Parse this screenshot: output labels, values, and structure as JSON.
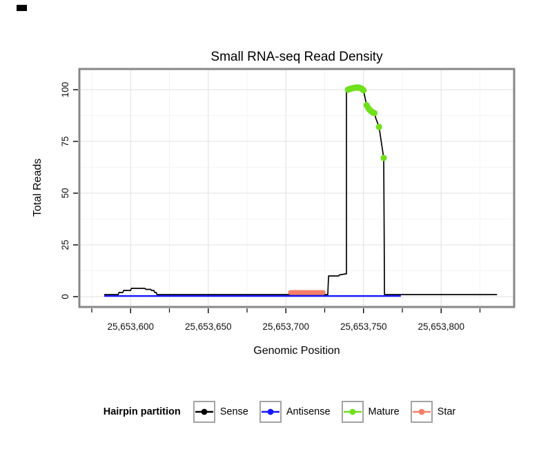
{
  "chart_data": {
    "type": "line",
    "title": "Small RNA-seq Read Density",
    "xlabel": "Genomic Position",
    "ylabel": "Total Reads",
    "legend_title": "Hairpin partition",
    "legend_position": "bottom",
    "grid": true,
    "xlim": [
      25653567,
      25653847
    ],
    "ylim": [
      -5,
      110
    ],
    "xticks": [
      25653600,
      25653650,
      25653700,
      25653750,
      25653800
    ],
    "xtick_labels": [
      "25,653,600",
      "25,653,650",
      "25,653,700",
      "25,653,750",
      "25,653,800"
    ],
    "xticks_minor": [
      25653575,
      25653625,
      25653675,
      25653725,
      25653775,
      25653825
    ],
    "yticks": [
      0,
      25,
      50,
      75,
      100
    ],
    "ytick_labels": [
      "0",
      "25",
      "50",
      "75",
      "100"
    ],
    "yticks_minor": [
      12.5,
      37.5,
      62.5,
      87.5
    ],
    "colors": {
      "frame": "#878787",
      "grid_major": "#E6E6E6",
      "grid_minor": "#F3F3F3",
      "tick": "#000000",
      "tick_label": "#111111"
    },
    "series": [
      {
        "name": "Sense",
        "color": "#000000",
        "style": "line",
        "linewidth": 1.7,
        "points": [
          [
            25653583,
            1
          ],
          [
            25653592,
            1
          ],
          [
            25653592.5,
            2
          ],
          [
            25653595,
            2
          ],
          [
            25653595.5,
            3
          ],
          [
            25653600,
            3
          ],
          [
            25653600.5,
            4
          ],
          [
            25653609,
            4
          ],
          [
            25653610,
            3.5
          ],
          [
            25653613,
            3.5
          ],
          [
            25653613.5,
            3
          ],
          [
            25653615,
            3
          ],
          [
            25653615.5,
            2
          ],
          [
            25653616.5,
            2
          ],
          [
            25653617,
            1
          ],
          [
            25653726,
            1
          ],
          [
            25653727,
            1
          ],
          [
            25653727.2,
            5
          ],
          [
            25653727.5,
            10
          ],
          [
            25653734,
            10
          ],
          [
            25653734.5,
            10.5
          ],
          [
            25653738.5,
            11
          ],
          [
            25653739,
            11
          ],
          [
            25653739,
            99.5
          ],
          [
            25653740,
            100
          ],
          [
            25653742,
            100.5
          ],
          [
            25653744,
            100.9
          ],
          [
            25653746,
            101
          ],
          [
            25653747,
            101
          ],
          [
            25653748,
            100.8
          ],
          [
            25653749,
            100.4
          ],
          [
            25653750,
            99.7
          ],
          [
            25653751,
            96
          ],
          [
            25653752,
            92.5
          ],
          [
            25653753,
            91.2
          ],
          [
            25653754,
            90.2
          ],
          [
            25653755,
            89.5
          ],
          [
            25653756,
            89
          ],
          [
            25653757,
            88.7
          ],
          [
            25653758,
            86
          ],
          [
            25653759,
            84
          ],
          [
            25653760,
            82
          ],
          [
            25653761,
            77
          ],
          [
            25653762,
            72
          ],
          [
            25653763,
            67
          ],
          [
            25653763.3,
            30
          ],
          [
            25653763.5,
            1
          ],
          [
            25653836,
            1
          ]
        ]
      },
      {
        "name": "Antisense",
        "color": "#1515FF",
        "style": "line",
        "linewidth": 2.4,
        "points": [
          [
            25653583,
            0.3
          ],
          [
            25653774,
            0.3
          ]
        ]
      },
      {
        "name": "Mature",
        "color": "#6FE01B",
        "style": "points",
        "pointsize": 4.6,
        "points": [
          [
            25653740,
            100
          ],
          [
            25653741,
            100.3
          ],
          [
            25653742,
            100.5
          ],
          [
            25653743,
            100.7
          ],
          [
            25653744,
            100.9
          ],
          [
            25653745,
            101
          ],
          [
            25653746,
            101
          ],
          [
            25653747,
            101
          ],
          [
            25653748,
            100.8
          ],
          [
            25653749,
            100.4
          ],
          [
            25653750,
            99.7
          ],
          [
            25653752,
            92.5
          ],
          [
            25653753,
            91.2
          ],
          [
            25653754,
            90.2
          ],
          [
            25653755,
            89.5
          ],
          [
            25653756,
            89
          ],
          [
            25653757,
            88.7
          ],
          [
            25653760,
            82
          ],
          [
            25653763,
            67
          ]
        ]
      },
      {
        "name": "Star",
        "color": "#F4806C",
        "style": "line",
        "linewidth": 7,
        "linecap": "round",
        "points": [
          [
            25653703,
            2
          ],
          [
            25653724,
            2
          ]
        ]
      }
    ]
  }
}
